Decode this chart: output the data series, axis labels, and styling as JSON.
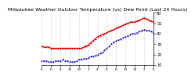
{
  "title": "Milwaukee Weather Outdoor Temperature (vs) Dew Point (Last 24 Hours)",
  "title_fontsize": 4.5,
  "background_color": "#ffffff",
  "grid_color": "#cccccc",
  "temp_color": "#dd0000",
  "dew_color": "#0000cc",
  "ylabel_right": true,
  "ylim": [
    10,
    60
  ],
  "yticks": [
    10,
    20,
    30,
    40,
    50,
    60
  ],
  "xlim": [
    0,
    24
  ],
  "xtick_labels": [
    "4",
    "6",
    "8",
    "10",
    "12",
    "2",
    "4",
    "6",
    "8",
    "10",
    "12",
    "2",
    "4"
  ],
  "xtick_positions": [
    0,
    2,
    4,
    6,
    8,
    10,
    12,
    14,
    16,
    18,
    20,
    22,
    24
  ],
  "x_grid_positions": [
    0,
    2,
    4,
    6,
    8,
    10,
    12,
    14,
    16,
    18,
    20,
    22,
    24
  ],
  "temp_x": [
    0,
    0.5,
    1,
    1.5,
    2,
    2.5,
    3,
    3.5,
    4,
    4.5,
    5,
    5.5,
    6,
    6.5,
    7,
    7.5,
    8,
    8.5,
    9,
    9.5,
    10,
    10.5,
    11,
    11.5,
    12,
    12.5,
    13,
    13.5,
    14,
    14.5,
    15,
    15.5,
    16,
    16.5,
    17,
    17.5,
    18,
    18.5,
    19,
    19.5,
    20,
    20.5,
    21,
    21.5,
    22,
    22.5,
    23,
    23.5,
    24
  ],
  "temp_y": [
    28,
    27,
    27,
    27,
    26,
    26,
    26,
    26,
    26,
    26,
    26,
    26,
    26,
    26,
    26,
    26,
    26,
    26,
    27,
    28,
    29,
    31,
    33,
    35,
    37,
    38,
    39,
    40,
    41,
    42,
    43,
    44,
    45,
    46,
    47,
    48,
    49,
    50,
    51,
    51,
    51,
    52,
    53,
    54,
    55,
    54,
    53,
    52,
    51
  ],
  "dew_x": [
    0,
    0.5,
    1,
    1.5,
    2,
    2.5,
    3,
    3.5,
    4,
    4.5,
    5,
    5.5,
    6,
    6.5,
    7,
    7.5,
    8,
    8.5,
    9,
    9.5,
    10,
    10.5,
    11,
    11.5,
    12,
    12.5,
    13,
    13.5,
    14,
    14.5,
    15,
    15.5,
    16,
    16.5,
    17,
    17.5,
    18,
    18.5,
    19,
    19.5,
    20,
    20.5,
    21,
    21.5,
    22,
    22.5,
    23,
    23.5,
    24
  ],
  "dew_y": [
    14,
    14,
    14,
    13,
    13,
    13,
    14,
    14,
    14,
    15,
    14,
    14,
    13,
    13,
    13,
    14,
    15,
    15,
    16,
    16,
    17,
    18,
    18,
    19,
    20,
    21,
    22,
    24,
    26,
    28,
    30,
    32,
    33,
    34,
    35,
    36,
    37,
    38,
    39,
    40,
    40,
    41,
    42,
    43,
    44,
    43,
    43,
    42,
    41
  ]
}
